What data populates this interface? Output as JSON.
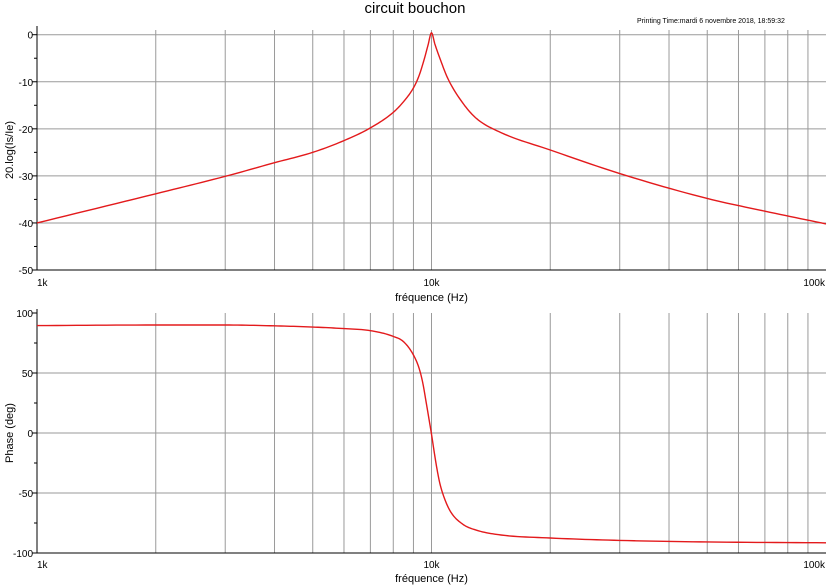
{
  "title": "circuit bouchon",
  "printing_time": "Printing Time:mardi 6 novembre 2018, 18:59:32",
  "colors": {
    "trace": "#e31a1c",
    "grid": "#9a9a9a",
    "axis": "#000000"
  },
  "chart_data": [
    {
      "type": "line",
      "xscale": "log",
      "xlabel": "fréquence (Hz)",
      "ylabel": "20.log(Is/Ie)",
      "xlim": [
        1000,
        100000
      ],
      "ylim": [
        -50,
        1
      ],
      "x_ticklabels": [
        {
          "value": 1000,
          "label": "1k"
        },
        {
          "value": 10000,
          "label": "10k"
        },
        {
          "value": 100000,
          "label": "100k"
        }
      ],
      "y_ticks": [
        0,
        -10,
        -20,
        -30,
        -40,
        -50
      ],
      "grid": true,
      "series": [
        {
          "x": [
            1000,
            2000,
            3000,
            4000,
            5000,
            6000,
            7000,
            8000,
            8500,
            9000,
            9300,
            9600,
            9800,
            10000,
            10200,
            10500,
            11000,
            12000,
            13000,
            15000,
            20000,
            30000,
            50000,
            70000,
            100000
          ],
          "y": [
            -40.0,
            -33.8,
            -30.1,
            -27.2,
            -25.0,
            -22.5,
            -19.8,
            -16.5,
            -14.2,
            -11.3,
            -8.7,
            -5.0,
            -2.2,
            0.4,
            -2.0,
            -5.0,
            -9.3,
            -14.5,
            -17.8,
            -20.8,
            -24.5,
            -29.5,
            -34.8,
            -37.5,
            -40.2
          ]
        }
      ]
    },
    {
      "type": "line",
      "xscale": "log",
      "xlabel": "fréquence (Hz)",
      "ylabel": "Phase (deg)",
      "xlim": [
        1000,
        100000
      ],
      "ylim": [
        -100,
        100
      ],
      "x_ticklabels": [
        {
          "value": 1000,
          "label": "1k"
        },
        {
          "value": 10000,
          "label": "10k"
        },
        {
          "value": 100000,
          "label": "100k"
        }
      ],
      "y_ticks": [
        100,
        50,
        0,
        -50,
        -100
      ],
      "grid": true,
      "series": [
        {
          "x": [
            1000,
            2000,
            3000,
            4000,
            5000,
            6000,
            7000,
            8000,
            8500,
            9000,
            9300,
            9500,
            9700,
            9850,
            10000,
            10150,
            10300,
            10500,
            10800,
            11200,
            12000,
            13000,
            15000,
            20000,
            30000,
            50000,
            100000
          ],
          "y": [
            89.5,
            90.0,
            90.0,
            89.3,
            88.3,
            87.0,
            85.3,
            80.5,
            76.0,
            65.0,
            54.0,
            42.0,
            25.0,
            12.0,
            -1.0,
            -15.0,
            -28.0,
            -42.0,
            -55.0,
            -66.0,
            -76.0,
            -81.0,
            -85.0,
            -87.5,
            -89.5,
            -90.8,
            -91.5
          ]
        }
      ]
    }
  ]
}
